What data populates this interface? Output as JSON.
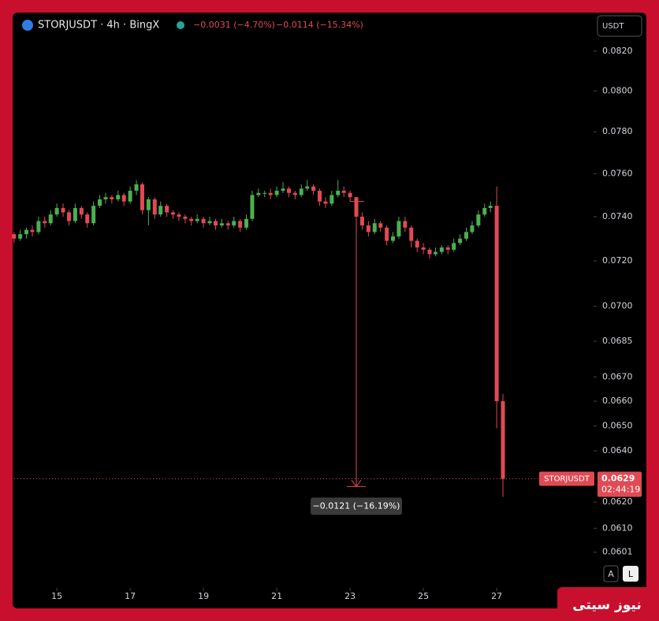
{
  "chart_data": {
    "type": "candlestick",
    "title": "STORJUSDT · 4h · BingX",
    "change_1": "−0.0031 (−4.70%)",
    "change_2": "−0.0114 (−15.34%)",
    "currency_button": "USDT",
    "price_label_name": "STORJUSDT",
    "last_price": 0.0629,
    "countdown": "02:44:19",
    "measure": {
      "x": 23.17,
      "from": 0.0747,
      "to": 0.0626,
      "label": "−0.0121 (−16.19%)"
    },
    "auto_button": "A",
    "log_button": "L",
    "watermark": "نیوز سیتی",
    "up_color": "#4caf50",
    "down_color": "#e04a55",
    "log_scale": true,
    "xlim": [
      13.75,
      29.6
    ],
    "xticks": [
      15,
      17,
      19,
      21,
      23,
      25,
      27
    ],
    "ylim": [
      0.0589,
      0.0839
    ],
    "yticks": [
      {
        "value": 0.082,
        "label": "0.0820"
      },
      {
        "value": 0.08,
        "label": "0.0800"
      },
      {
        "value": 0.078,
        "label": "0.0780"
      },
      {
        "value": 0.076,
        "label": "0.0760"
      },
      {
        "value": 0.074,
        "label": "0.0740"
      },
      {
        "value": 0.072,
        "label": "0.0720"
      },
      {
        "value": 0.07,
        "label": "0.0700"
      },
      0.0685,
      {
        "value": 0.067,
        "label": "0.0670"
      },
      {
        "value": 0.066,
        "label": "0.0660"
      },
      {
        "value": 0.065,
        "label": "0.0650"
      },
      {
        "value": 0.064,
        "label": "0.0640"
      },
      {
        "value": 0.062,
        "label": "0.0620"
      },
      {
        "value": 0.061,
        "label": "0.0610"
      },
      0.0601
    ],
    "x": [
      13.83,
      14,
      14.17,
      14.33,
      14.5,
      14.67,
      14.83,
      15,
      15.17,
      15.33,
      15.5,
      15.67,
      15.83,
      16,
      16.17,
      16.33,
      16.5,
      16.67,
      16.83,
      17,
      17.17,
      17.33,
      17.5,
      17.67,
      17.83,
      18,
      18.17,
      18.33,
      18.5,
      18.67,
      18.83,
      19,
      19.17,
      19.33,
      19.5,
      19.67,
      19.83,
      20,
      20.17,
      20.33,
      20.5,
      20.67,
      20.83,
      21,
      21.17,
      21.33,
      21.5,
      21.67,
      21.83,
      22,
      22.17,
      22.33,
      22.5,
      22.67,
      22.83,
      23,
      23.17,
      23.33,
      23.5,
      23.67,
      23.83,
      24,
      24.17,
      24.33,
      24.5,
      24.67,
      24.83,
      25,
      25.17,
      25.33,
      25.5,
      25.67,
      25.83,
      26,
      26.17,
      26.33,
      26.5,
      26.67,
      26.83,
      27,
      27.17
    ],
    "candles": [
      [
        0.0732,
        0.0733,
        0.0728,
        0.073
      ],
      [
        0.073,
        0.0734,
        0.0729,
        0.0732
      ],
      [
        0.0732,
        0.0735,
        0.073,
        0.0734
      ],
      [
        0.0734,
        0.0736,
        0.0731,
        0.0733
      ],
      [
        0.0733,
        0.074,
        0.0732,
        0.0738
      ],
      [
        0.0738,
        0.074,
        0.0735,
        0.0737
      ],
      [
        0.0737,
        0.0743,
        0.0736,
        0.0741
      ],
      [
        0.0741,
        0.0746,
        0.074,
        0.0744
      ],
      [
        0.0744,
        0.0746,
        0.074,
        0.0742
      ],
      [
        0.0742,
        0.0743,
        0.0736,
        0.0738
      ],
      [
        0.0738,
        0.0746,
        0.0737,
        0.0744
      ],
      [
        0.0744,
        0.0745,
        0.0739,
        0.0741
      ],
      [
        0.0741,
        0.0742,
        0.0735,
        0.0737
      ],
      [
        0.0737,
        0.0747,
        0.0736,
        0.0745
      ],
      [
        0.0745,
        0.075,
        0.0744,
        0.0748
      ],
      [
        0.0748,
        0.0751,
        0.0746,
        0.0749
      ],
      [
        0.0749,
        0.075,
        0.0746,
        0.0748
      ],
      [
        0.0748,
        0.0752,
        0.0747,
        0.075
      ],
      [
        0.075,
        0.0751,
        0.0745,
        0.0747
      ],
      [
        0.0747,
        0.0754,
        0.0746,
        0.0752
      ],
      [
        0.0752,
        0.0757,
        0.075,
        0.0755
      ],
      [
        0.0755,
        0.0756,
        0.0741,
        0.0743
      ],
      [
        0.0743,
        0.0749,
        0.0736,
        0.0748
      ],
      [
        0.0748,
        0.0749,
        0.0739,
        0.0741
      ],
      [
        0.0741,
        0.0747,
        0.074,
        0.0745
      ],
      [
        0.0745,
        0.0746,
        0.074,
        0.0742
      ],
      [
        0.0742,
        0.0743,
        0.0739,
        0.0741
      ],
      [
        0.0741,
        0.0742,
        0.0738,
        0.074
      ],
      [
        0.074,
        0.0741,
        0.0737,
        0.0739
      ],
      [
        0.0739,
        0.074,
        0.0736,
        0.0738
      ],
      [
        0.0738,
        0.0741,
        0.0737,
        0.0739
      ],
      [
        0.0739,
        0.074,
        0.0735,
        0.0737
      ],
      [
        0.0737,
        0.074,
        0.0736,
        0.0738
      ],
      [
        0.0738,
        0.0739,
        0.0734,
        0.0736
      ],
      [
        0.0736,
        0.0739,
        0.0735,
        0.0737
      ],
      [
        0.0737,
        0.0738,
        0.0734,
        0.0736
      ],
      [
        0.0736,
        0.074,
        0.0735,
        0.0738
      ],
      [
        0.0738,
        0.0739,
        0.0733,
        0.0735
      ],
      [
        0.0735,
        0.0741,
        0.0734,
        0.0739
      ],
      [
        0.0739,
        0.0752,
        0.0738,
        0.075
      ],
      [
        0.075,
        0.0753,
        0.0749,
        0.0751
      ],
      [
        0.0751,
        0.0752,
        0.0749,
        0.0751
      ],
      [
        0.0751,
        0.0753,
        0.0748,
        0.075
      ],
      [
        0.075,
        0.0754,
        0.0749,
        0.0752
      ],
      [
        0.0752,
        0.0756,
        0.0751,
        0.0753
      ],
      [
        0.0753,
        0.0754,
        0.0749,
        0.0751
      ],
      [
        0.0751,
        0.0752,
        0.0748,
        0.075
      ],
      [
        0.075,
        0.0755,
        0.0749,
        0.0753
      ],
      [
        0.0753,
        0.0757,
        0.0752,
        0.0754
      ],
      [
        0.0754,
        0.0755,
        0.075,
        0.0752
      ],
      [
        0.0752,
        0.0753,
        0.0745,
        0.0747
      ],
      [
        0.0747,
        0.0749,
        0.0744,
        0.0746
      ],
      [
        0.0746,
        0.0752,
        0.0745,
        0.075
      ],
      [
        0.075,
        0.0757,
        0.0749,
        0.0752
      ],
      [
        0.0752,
        0.0754,
        0.0749,
        0.0751
      ],
      [
        0.0751,
        0.0752,
        0.0747,
        0.0749
      ],
      [
        0.0749,
        0.0749,
        0.0738,
        0.074
      ],
      [
        0.074,
        0.0742,
        0.0734,
        0.0736
      ],
      [
        0.0736,
        0.0738,
        0.0731,
        0.0733
      ],
      [
        0.0733,
        0.0739,
        0.0732,
        0.0737
      ],
      [
        0.0737,
        0.0738,
        0.0733,
        0.0735
      ],
      [
        0.0735,
        0.0736,
        0.0727,
        0.0729
      ],
      [
        0.0729,
        0.0733,
        0.0728,
        0.0731
      ],
      [
        0.0731,
        0.074,
        0.073,
        0.0738
      ],
      [
        0.0738,
        0.074,
        0.0733,
        0.0735
      ],
      [
        0.0735,
        0.0736,
        0.0726,
        0.0729
      ],
      [
        0.0729,
        0.073,
        0.0724,
        0.0726
      ],
      [
        0.0726,
        0.0728,
        0.0723,
        0.0725
      ],
      [
        0.0725,
        0.0726,
        0.0721,
        0.0723
      ],
      [
        0.0723,
        0.0726,
        0.0722,
        0.0724
      ],
      [
        0.0724,
        0.0727,
        0.0723,
        0.0726
      ],
      [
        0.0726,
        0.0727,
        0.0723,
        0.0725
      ],
      [
        0.0725,
        0.073,
        0.0724,
        0.0728
      ],
      [
        0.0728,
        0.0732,
        0.0727,
        0.073
      ],
      [
        0.073,
        0.0735,
        0.0729,
        0.0733
      ],
      [
        0.0733,
        0.0738,
        0.0732,
        0.0736
      ],
      [
        0.0736,
        0.0743,
        0.0735,
        0.0741
      ],
      [
        0.0741,
        0.0746,
        0.074,
        0.0744
      ],
      [
        0.0744,
        0.0747,
        0.0742,
        0.0745
      ],
      [
        0.0745,
        0.0754,
        0.0649,
        0.066
      ],
      [
        0.066,
        0.0663,
        0.0622,
        0.0629
      ]
    ]
  }
}
